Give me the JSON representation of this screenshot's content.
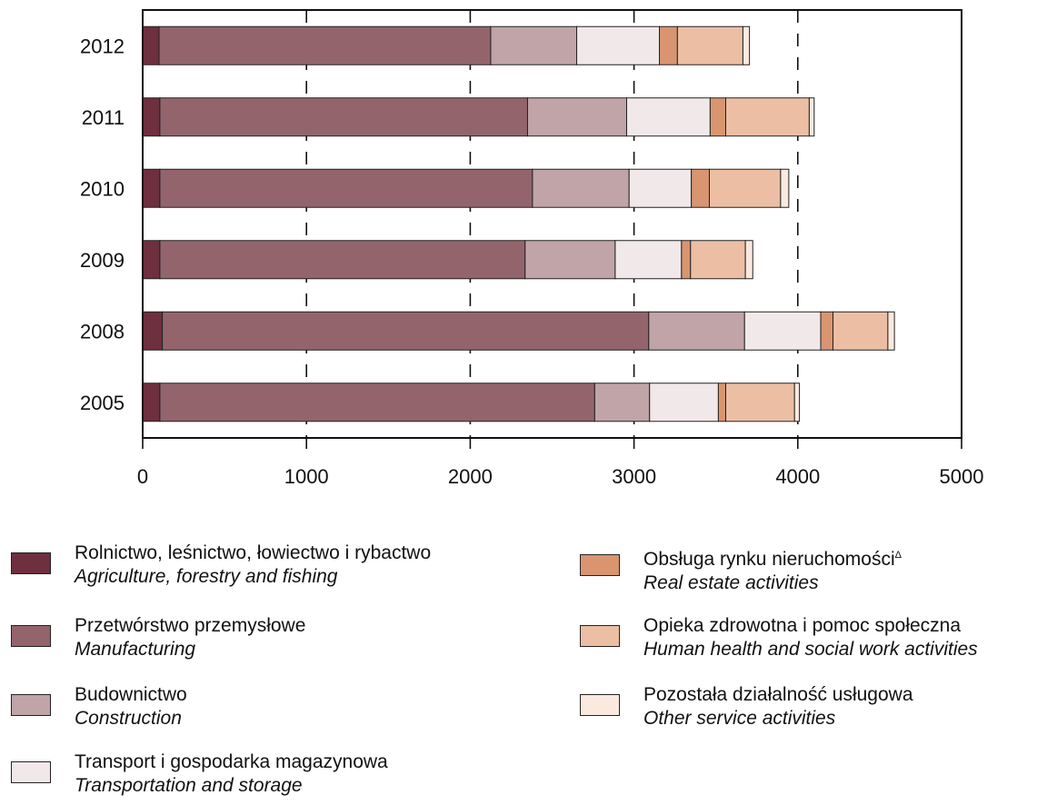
{
  "chart_data": {
    "type": "bar",
    "orientation": "horizontal",
    "stacked": true,
    "categories": [
      "2012",
      "2011",
      "2010",
      "2009",
      "2008",
      "2005"
    ],
    "xlim": [
      0,
      5000
    ],
    "x_ticks": [
      "0",
      "1000",
      "2000",
      "3000",
      "4000",
      "5000"
    ],
    "grid": "dashed vertical at 1000, 2000, 3000, 4000",
    "series": [
      {
        "name": "Rolnictwo, leśnictwo, łowiectwo i rybactwo",
        "name_en": "Agriculture, forestry and fishing",
        "color": "#6e2f3e",
        "values": [
          100,
          105,
          105,
          105,
          120,
          105
        ]
      },
      {
        "name": "Przetwórstwo przemysłowe",
        "name_en": "Manufacturing",
        "color": "#94646d",
        "values": [
          2025,
          2245,
          2275,
          2230,
          2970,
          2655
        ]
      },
      {
        "name": "Budownictwo",
        "name_en": "Construction",
        "color": "#c0a4a8",
        "values": [
          525,
          605,
          590,
          550,
          585,
          335
        ]
      },
      {
        "name": "Transport i gospodarka magazynowa",
        "name_en": "Transportation and storage",
        "color": "#f1e8e9",
        "values": [
          505,
          510,
          380,
          405,
          465,
          420
        ]
      },
      {
        "name": "Obsługa rynku nieruchomości",
        "name_en": "Real estate activities",
        "color": "#d89570",
        "values": [
          110,
          95,
          110,
          55,
          75,
          45
        ]
      },
      {
        "name": "Opieka zdrowotna i pomoc społeczna",
        "name_en": "Human health and social work activities",
        "color": "#ecbfa4",
        "values": [
          400,
          510,
          435,
          335,
          335,
          420
        ]
      },
      {
        "name": "Pozostała działalność usługowa",
        "name_en": "Other service activities",
        "color": "#fbe9e0",
        "values": [
          40,
          30,
          50,
          45,
          40,
          30
        ]
      }
    ]
  },
  "legend": {
    "left": [
      {
        "pl": "Rolnictwo, leśnictwo, łowiectwo i rybactwo",
        "en": "Agriculture, forestry and fishing",
        "color": "#6e2f3e"
      },
      {
        "pl": "Przetwórstwo przemysłowe",
        "en": "Manufacturing",
        "color": "#94646d"
      },
      {
        "pl": "Budownictwo",
        "en": "Construction",
        "color": "#c0a4a8"
      },
      {
        "pl": "Transport i gospodarka magazynowa",
        "en": "Transportation and storage",
        "color": "#f1e8e9"
      }
    ],
    "right": [
      {
        "pl": "Obsługa rynku nieruchomości",
        "sup": "Δ",
        "en": "Real estate activities",
        "color": "#d89570"
      },
      {
        "pl": "Opieka zdrowotna i pomoc społeczna",
        "en": "Human health and social work activities",
        "color": "#ecbfa4"
      },
      {
        "pl": "Pozostała działalność usługowa",
        "en": "Other service activities",
        "color": "#fbe9e0"
      }
    ]
  }
}
